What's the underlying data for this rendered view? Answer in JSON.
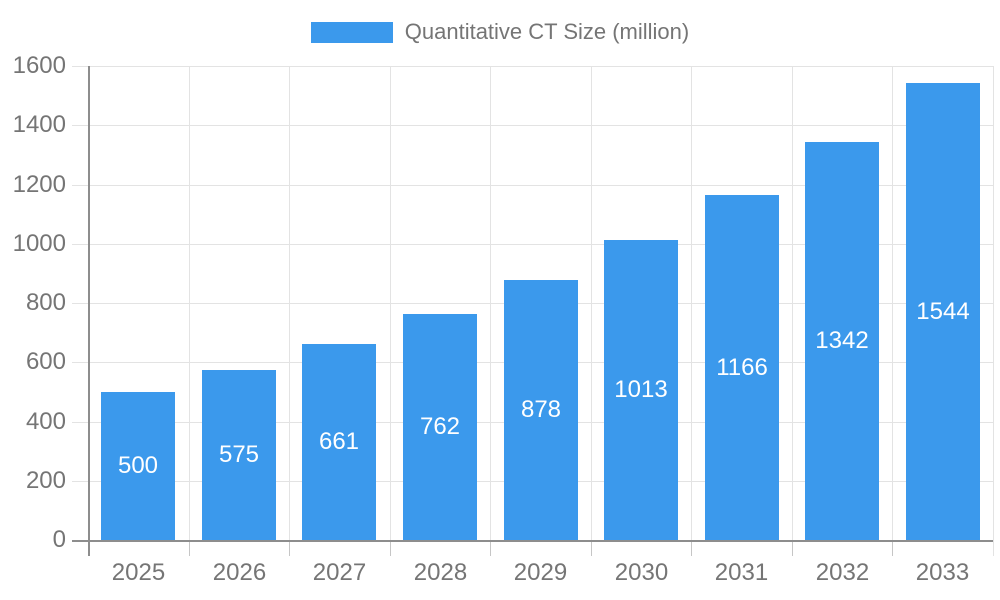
{
  "chart": {
    "colors": {
      "bar": "#3B99EC",
      "grid": "#E3E3E3",
      "tick": "#C6C6C6",
      "axis": "#8D8D8D",
      "axis_label": "#757575",
      "value_label": "#FFFFFF",
      "background": "#FFFFFF"
    },
    "legend": {
      "label": "Quantitative CT Size (million)"
    }
  },
  "chart_data": {
    "type": "bar",
    "title": "Quantitative CT Size (million)",
    "categories": [
      "2025",
      "2026",
      "2027",
      "2028",
      "2029",
      "2030",
      "2031",
      "2032",
      "2033"
    ],
    "values": [
      500,
      575,
      661,
      762,
      878,
      1013,
      1166,
      1342,
      1544
    ],
    "series": [
      {
        "name": "Quantitative CT Size (million)",
        "values": [
          500,
          575,
          661,
          762,
          878,
          1013,
          1166,
          1342,
          1544
        ]
      }
    ],
    "xlabel": "",
    "ylabel": "",
    "ylim": [
      0,
      1600
    ],
    "ytick_step": 200,
    "y_ticks": [
      0,
      200,
      400,
      600,
      800,
      1000,
      1200,
      1400,
      1600
    ],
    "grid": true,
    "legend_position": "top-center",
    "value_label_position": "inside-center"
  }
}
